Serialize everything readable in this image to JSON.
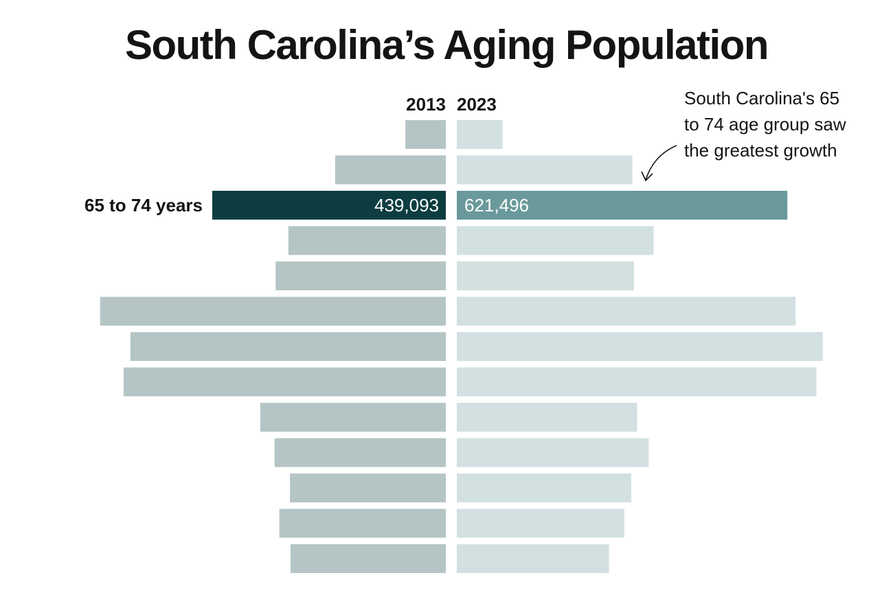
{
  "chart_data": {
    "type": "bar",
    "title": "South Carolina’s Aging Population",
    "legend": {
      "left": "2013",
      "right": "2023"
    },
    "annotation": "South Carolina's 65 to 74 age group saw the greatest growth",
    "categories": [
      "",
      "",
      "65 to 74 years",
      "",
      "",
      "",
      "",
      "",
      "",
      "",
      "",
      "",
      ""
    ],
    "series": [
      {
        "name": "2013",
        "values": [
          76000,
          208000,
          439093,
          296000,
          320000,
          650000,
          593000,
          606000,
          349000,
          322000,
          293000,
          313000,
          292000
        ]
      },
      {
        "name": "2023",
        "values": [
          86000,
          330000,
          621496,
          370000,
          333000,
          637000,
          688000,
          676000,
          339000,
          361000,
          328000,
          315000,
          286000
        ]
      }
    ],
    "highlight": {
      "category": "65 to 74 years",
      "label_2013": "439,093",
      "label_2023": "621,496"
    },
    "colors": {
      "left": "#b5c5c5",
      "right": "#d2e0e1",
      "highlight_left": "#0d3d41",
      "highlight_right": "#6a999b",
      "text": "#141414"
    },
    "grid": false
  }
}
